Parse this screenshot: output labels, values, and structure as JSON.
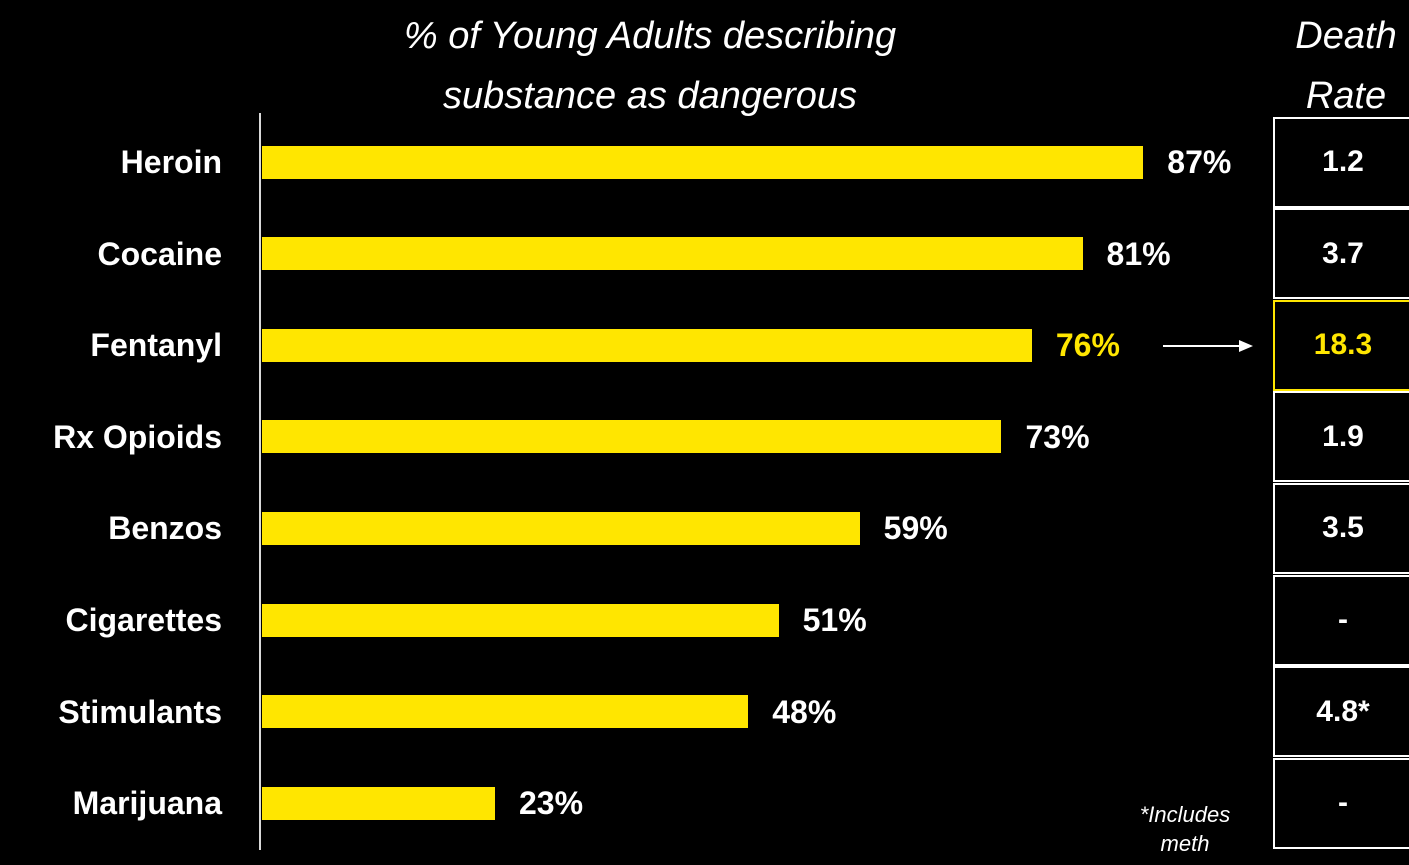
{
  "chart_data": {
    "type": "bar",
    "orientation": "horizontal",
    "title": "% of Young Adults describing substance as dangerous",
    "categories": [
      "Heroin",
      "Cocaine",
      "Fentanyl",
      "Rx Opioids",
      "Benzos",
      "Cigarettes",
      "Stimulants",
      "Marijuana"
    ],
    "values": [
      87,
      81,
      76,
      73,
      59,
      51,
      48,
      23
    ],
    "value_labels": [
      "87%",
      "81%",
      "76%",
      "73%",
      "59%",
      "51%",
      "48%",
      "23%"
    ],
    "highlighted_category": "Fentanyl",
    "xlim": [
      0,
      100
    ],
    "bar_color": "#ffe600",
    "highlight_color": "#ffe600",
    "background_color": "#000000",
    "death_rate": {
      "header_line1": "Death",
      "header_line2": "Rate",
      "values": [
        "1.2",
        "3.7",
        "18.3",
        "1.9",
        "3.5",
        "-",
        "4.8*",
        "-"
      ]
    },
    "footnote_line1": "*Includes",
    "footnote_line2": "meth"
  }
}
